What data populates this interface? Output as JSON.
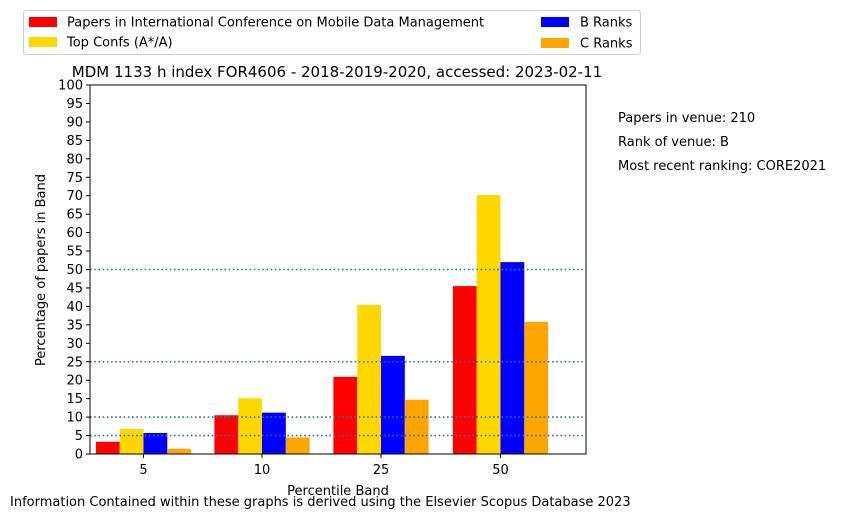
{
  "chart_data": {
    "type": "bar",
    "title": "MDM 1133 h index FOR4606 - 2018-2019-2020, accessed: 2023-02-11",
    "xlabel": "Percentile Band",
    "ylabel": "Percentage of papers in Band",
    "categories": [
      "5",
      "10",
      "25",
      "50"
    ],
    "ylim": [
      0,
      100
    ],
    "yticks": [
      0,
      5,
      10,
      15,
      20,
      25,
      30,
      35,
      40,
      45,
      50,
      55,
      60,
      65,
      70,
      75,
      80,
      85,
      90,
      95,
      100
    ],
    "series": [
      {
        "name": "Papers in International Conference on Mobile Data Management",
        "color": "#ff0000",
        "values": [
          3.3,
          10.5,
          20.9,
          45.5
        ]
      },
      {
        "name": "Top Confs (A*/A)",
        "color": "#ffd700",
        "values": [
          6.8,
          15.1,
          40.4,
          70.2
        ]
      },
      {
        "name": "B Ranks",
        "color": "#0000ff",
        "values": [
          5.7,
          11.2,
          26.6,
          52.0
        ]
      },
      {
        "name": "C Ranks",
        "color": "#ffa500",
        "values": [
          1.4,
          4.5,
          14.7,
          35.8
        ]
      }
    ],
    "reference_lines": [
      5,
      10,
      25,
      50
    ],
    "reference_line_color": "#1f77b4",
    "grid": false,
    "legend_position": "top"
  },
  "side_notes": {
    "papers": "Papers in venue: 210",
    "rank": "Rank of venue: B",
    "ranking": "Most recent ranking: CORE2021"
  },
  "footer": "Information Contained within these graphs is derived using the Elsevier Scopus Database 2023"
}
